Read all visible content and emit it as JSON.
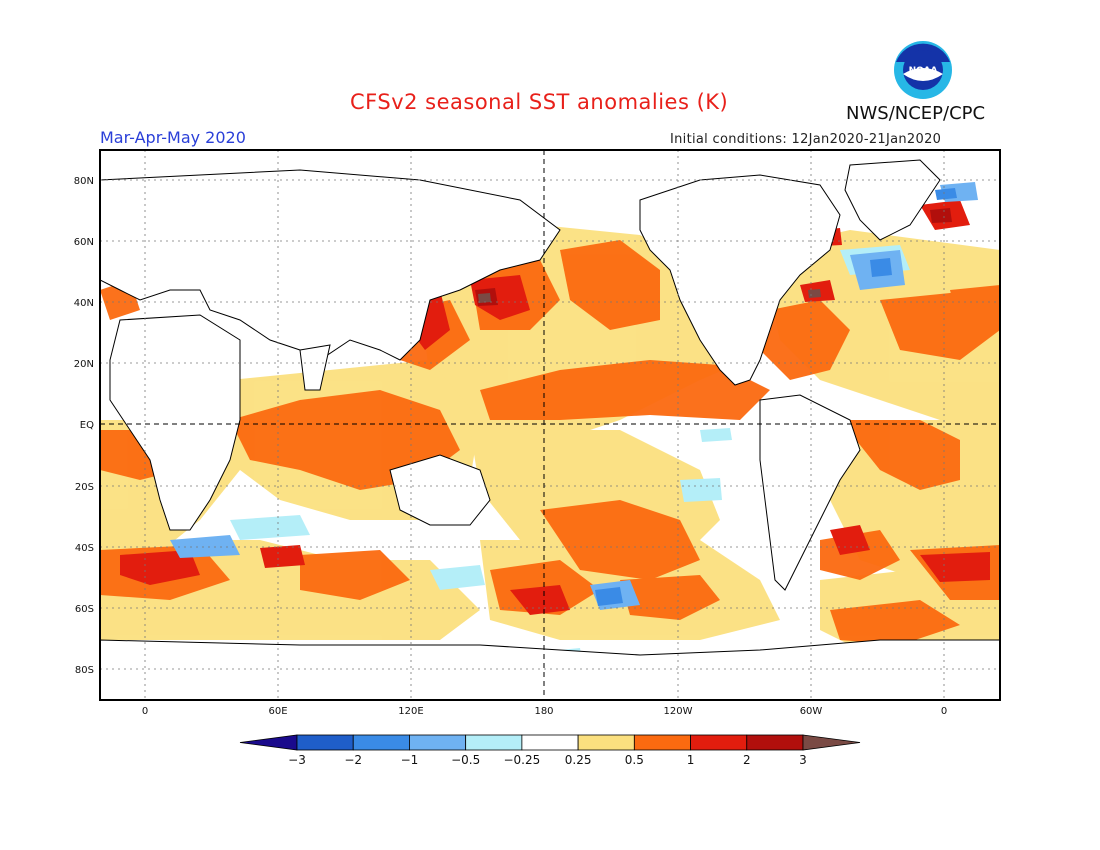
{
  "header": {
    "title": "CFSv2 seasonal SST anomalies (K)",
    "season": "Mar-Apr-May 2020",
    "agency": "NWS/NCEP/CPC",
    "initial_conditions": "Initial conditions: 12Jan2020-21Jan2020",
    "logo_text": "NOAA"
  },
  "map": {
    "lat_labels": [
      "80N",
      "60N",
      "40N",
      "20N",
      "EQ",
      "20S",
      "40S",
      "60S",
      "80S"
    ],
    "lon_labels": [
      "0",
      "60E",
      "120E",
      "180",
      "120W",
      "60W",
      "0"
    ]
  },
  "colorbar": {
    "labels": [
      "-3",
      "-2",
      "-1",
      "-0.5",
      "-0.25",
      "0.25",
      "0.5",
      "1",
      "2",
      "3"
    ],
    "colors": [
      "#1a0a8c",
      "#1f5ec9",
      "#3a8be6",
      "#6fb2f2",
      "#b4eef8",
      "#ffffff",
      "#fbe07f",
      "#fb6a10",
      "#e21d0e",
      "#b10f0c",
      "#7a4a44"
    ]
  }
}
